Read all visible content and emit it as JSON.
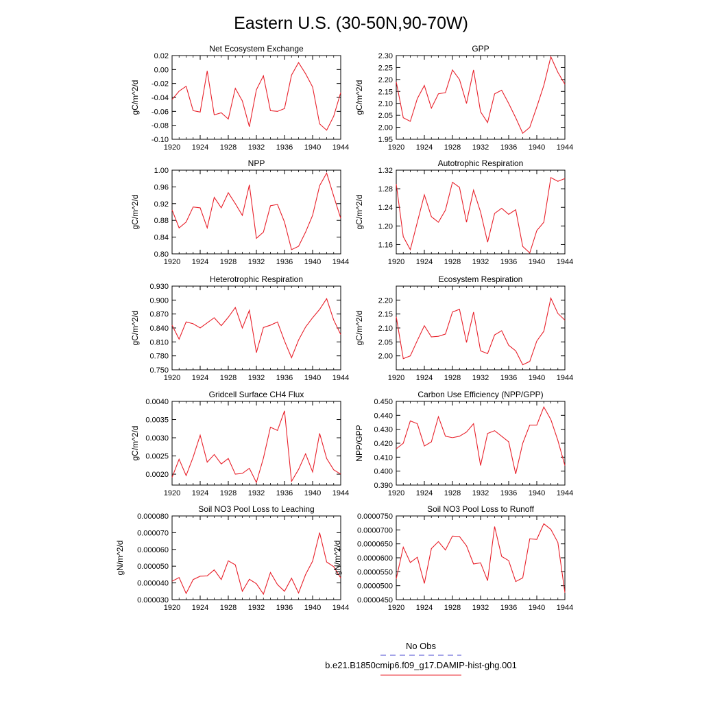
{
  "page": {
    "title": "Eastern U.S. (30-50N,90-70W)",
    "legend": {
      "obs_label": "No Obs",
      "obs_color": "#4a4ad0",
      "model_label": "b.e21.B1850cmip6.f09_g17.DAMIP-hist-ghg.001",
      "model_color": "#e8202a"
    }
  },
  "chart_data": [
    {
      "type": "line",
      "title": "Net Ecosystem Exchange",
      "ylabel": "gC/m^2/d",
      "xlim": [
        1920,
        1944
      ],
      "xticks": [
        "1920",
        "1924",
        "1928",
        "1932",
        "1936",
        "1940",
        "1944"
      ],
      "ylim": [
        -0.1,
        0.02
      ],
      "yticks": [
        "-0.10",
        "-0.08",
        "-0.06",
        "-0.04",
        "-0.02",
        "0.00",
        "0.02"
      ],
      "x": [
        1920,
        1921,
        1922,
        1923,
        1924,
        1925,
        1926,
        1927,
        1928,
        1929,
        1930,
        1931,
        1932,
        1933,
        1934,
        1935,
        1936,
        1937,
        1938,
        1939,
        1940,
        1941,
        1942,
        1943,
        1944
      ],
      "series": [
        {
          "color": "#e8202a",
          "values": [
            -0.043,
            -0.031,
            -0.024,
            -0.059,
            -0.061,
            -0.002,
            -0.065,
            -0.062,
            -0.071,
            -0.027,
            -0.045,
            -0.082,
            -0.029,
            -0.009,
            -0.059,
            -0.06,
            -0.056,
            -0.008,
            0.01,
            -0.006,
            -0.025,
            -0.078,
            -0.087,
            -0.067,
            -0.033
          ]
        }
      ]
    },
    {
      "type": "line",
      "title": "GPP",
      "ylabel": "gC/m^2/d",
      "xlim": [
        1920,
        1944
      ],
      "xticks": [
        "1920",
        "1924",
        "1928",
        "1932",
        "1936",
        "1940",
        "1944"
      ],
      "ylim": [
        1.95,
        2.3
      ],
      "yticks": [
        "1.95",
        "2.00",
        "2.05",
        "2.10",
        "2.15",
        "2.20",
        "2.25",
        "2.30"
      ],
      "x": [
        1920,
        1921,
        1922,
        1923,
        1924,
        1925,
        1926,
        1927,
        1928,
        1929,
        1930,
        1931,
        1932,
        1933,
        1934,
        1935,
        1936,
        1937,
        1938,
        1939,
        1940,
        1941,
        1942,
        1943,
        1944
      ],
      "series": [
        {
          "color": "#e8202a",
          "values": [
            2.19,
            2.04,
            2.025,
            2.12,
            2.175,
            2.08,
            2.14,
            2.145,
            2.24,
            2.2,
            2.1,
            2.24,
            2.065,
            2.02,
            2.14,
            2.155,
            2.1,
            2.04,
            1.975,
            2.0,
            2.085,
            2.175,
            2.295,
            2.23,
            2.18
          ]
        }
      ]
    },
    {
      "type": "line",
      "title": "NPP",
      "ylabel": "gC/m^2/d",
      "xlim": [
        1920,
        1944
      ],
      "xticks": [
        "1920",
        "1924",
        "1928",
        "1932",
        "1936",
        "1940",
        "1944"
      ],
      "ylim": [
        0.8,
        1.0
      ],
      "yticks": [
        "0.80",
        "0.84",
        "0.88",
        "0.92",
        "0.96",
        "1.00"
      ],
      "x": [
        1920,
        1921,
        1922,
        1923,
        1924,
        1925,
        1926,
        1927,
        1928,
        1929,
        1930,
        1931,
        1932,
        1933,
        1934,
        1935,
        1936,
        1937,
        1938,
        1939,
        1940,
        1941,
        1942,
        1943,
        1944
      ],
      "series": [
        {
          "color": "#e8202a",
          "values": [
            0.905,
            0.862,
            0.876,
            0.912,
            0.91,
            0.862,
            0.935,
            0.91,
            0.946,
            0.92,
            0.892,
            0.965,
            0.837,
            0.852,
            0.915,
            0.918,
            0.876,
            0.81,
            0.818,
            0.852,
            0.892,
            0.963,
            0.993,
            0.938,
            0.885
          ]
        }
      ]
    },
    {
      "type": "line",
      "title": "Autotrophic Respiration",
      "ylabel": "gC/m^2/d",
      "xlim": [
        1920,
        1944
      ],
      "xticks": [
        "1920",
        "1924",
        "1928",
        "1932",
        "1936",
        "1940",
        "1944"
      ],
      "ylim": [
        1.14,
        1.32
      ],
      "yticks": [
        "1.16",
        "1.20",
        "1.24",
        "1.28",
        "1.32"
      ],
      "x": [
        1920,
        1921,
        1922,
        1923,
        1924,
        1925,
        1926,
        1927,
        1928,
        1929,
        1930,
        1931,
        1932,
        1933,
        1934,
        1935,
        1936,
        1937,
        1938,
        1939,
        1940,
        1941,
        1942,
        1943,
        1944
      ],
      "series": [
        {
          "color": "#e8202a",
          "values": [
            1.29,
            1.177,
            1.149,
            1.208,
            1.267,
            1.22,
            1.208,
            1.234,
            1.294,
            1.283,
            1.208,
            1.277,
            1.23,
            1.165,
            1.227,
            1.238,
            1.225,
            1.235,
            1.156,
            1.142,
            1.19,
            1.208,
            1.304,
            1.296,
            1.302
          ]
        }
      ]
    },
    {
      "type": "line",
      "title": "Heterotrophic Respiration",
      "ylabel": "gC/m^2/d",
      "xlim": [
        1920,
        1944
      ],
      "xticks": [
        "1920",
        "1924",
        "1928",
        "1932",
        "1936",
        "1940",
        "1944"
      ],
      "ylim": [
        0.75,
        0.93
      ],
      "yticks": [
        "0.750",
        "0.780",
        "0.810",
        "0.840",
        "0.870",
        "0.900",
        "0.930"
      ],
      "x": [
        1920,
        1921,
        1922,
        1923,
        1924,
        1925,
        1926,
        1927,
        1928,
        1929,
        1930,
        1931,
        1932,
        1933,
        1934,
        1935,
        1936,
        1937,
        1938,
        1939,
        1940,
        1941,
        1942,
        1943,
        1944
      ],
      "series": [
        {
          "color": "#e8202a",
          "values": [
            0.846,
            0.816,
            0.853,
            0.849,
            0.84,
            0.851,
            0.862,
            0.845,
            0.863,
            0.884,
            0.84,
            0.878,
            0.787,
            0.841,
            0.846,
            0.853,
            0.812,
            0.776,
            0.814,
            0.842,
            0.862,
            0.88,
            0.903,
            0.857,
            0.826
          ]
        }
      ]
    },
    {
      "type": "line",
      "title": "Ecosystem Respiration",
      "ylabel": "gC/m^2/d",
      "xlim": [
        1920,
        1944
      ],
      "xticks": [
        "1920",
        "1924",
        "1928",
        "1932",
        "1936",
        "1940",
        "1944"
      ],
      "ylim": [
        1.95,
        2.25
      ],
      "yticks": [
        "2.00",
        "2.05",
        "2.10",
        "2.15",
        "2.20"
      ],
      "x": [
        1920,
        1921,
        1922,
        1923,
        1924,
        1925,
        1926,
        1927,
        1928,
        1929,
        1930,
        1931,
        1932,
        1933,
        1934,
        1935,
        1936,
        1937,
        1938,
        1939,
        1940,
        1941,
        1942,
        1943,
        1944
      ],
      "series": [
        {
          "color": "#e8202a",
          "values": [
            2.14,
            1.99,
            2.0,
            2.055,
            2.108,
            2.068,
            2.07,
            2.078,
            2.157,
            2.167,
            2.048,
            2.157,
            2.018,
            2.008,
            2.075,
            2.09,
            2.038,
            2.018,
            1.968,
            1.98,
            2.053,
            2.088,
            2.207,
            2.152,
            2.128
          ]
        }
      ]
    },
    {
      "type": "line",
      "title": "Gridcell Surface CH4 Flux",
      "ylabel": "gC/m^2/d",
      "xlim": [
        1920,
        1944
      ],
      "xticks": [
        "1920",
        "1924",
        "1928",
        "1932",
        "1936",
        "1940",
        "1944"
      ],
      "ylim": [
        0.0017,
        0.004
      ],
      "yticks": [
        "0.0020",
        "0.0025",
        "0.0030",
        "0.0035",
        "0.0040"
      ],
      "x": [
        1920,
        1921,
        1922,
        1923,
        1924,
        1925,
        1926,
        1927,
        1928,
        1929,
        1930,
        1931,
        1932,
        1933,
        1934,
        1935,
        1936,
        1937,
        1938,
        1939,
        1940,
        1941,
        1942,
        1943,
        1944
      ],
      "series": [
        {
          "color": "#e8202a",
          "values": [
            0.00191,
            0.00241,
            0.00196,
            0.00247,
            0.00307,
            0.00233,
            0.00254,
            0.00228,
            0.00243,
            0.002,
            0.00202,
            0.00216,
            0.00177,
            0.00244,
            0.00329,
            0.0032,
            0.00374,
            0.0018,
            0.00213,
            0.00256,
            0.00206,
            0.00312,
            0.00243,
            0.00212,
            0.002
          ]
        }
      ]
    },
    {
      "type": "line",
      "title": "Carbon Use Efficiency (NPP/GPP)",
      "ylabel": "NPP/GPP",
      "xlim": [
        1920,
        1944
      ],
      "xticks": [
        "1920",
        "1924",
        "1928",
        "1932",
        "1936",
        "1940",
        "1944"
      ],
      "ylim": [
        0.39,
        0.45
      ],
      "yticks": [
        "0.390",
        "0.400",
        "0.410",
        "0.420",
        "0.430",
        "0.440",
        "0.450"
      ],
      "x": [
        1920,
        1921,
        1922,
        1923,
        1924,
        1925,
        1926,
        1927,
        1928,
        1929,
        1930,
        1931,
        1932,
        1933,
        1934,
        1935,
        1936,
        1937,
        1938,
        1939,
        1940,
        1941,
        1942,
        1943,
        1944
      ],
      "series": [
        {
          "color": "#e8202a",
          "values": [
            0.416,
            0.42,
            0.436,
            0.434,
            0.418,
            0.421,
            0.439,
            0.425,
            0.424,
            0.425,
            0.428,
            0.434,
            0.404,
            0.427,
            0.429,
            0.425,
            0.421,
            0.398,
            0.42,
            0.433,
            0.433,
            0.446,
            0.437,
            0.422,
            0.404
          ]
        }
      ]
    },
    {
      "type": "line",
      "title": "Soil NO3 Pool Loss to Leaching",
      "ylabel": "gN/m^2/d",
      "xlim": [
        1920,
        1944
      ],
      "xticks": [
        "1920",
        "1924",
        "1928",
        "1932",
        "1936",
        "1940",
        "1944"
      ],
      "ylim": [
        3e-05,
        8e-05
      ],
      "yticks": [
        "0.000030",
        "0.000040",
        "0.000050",
        "0.000060",
        "0.000070",
        "0.000080"
      ],
      "x": [
        1920,
        1921,
        1922,
        1923,
        1924,
        1925,
        1926,
        1927,
        1928,
        1929,
        1930,
        1931,
        1932,
        1933,
        1934,
        1935,
        1936,
        1937,
        1938,
        1939,
        1940,
        1941,
        1942,
        1943,
        1944
      ],
      "series": [
        {
          "color": "#e8202a",
          "values": [
            4.1e-05,
            4.32e-05,
            3.37e-05,
            4.2e-05,
            4.4e-05,
            4.42e-05,
            4.78e-05,
            4.2e-05,
            5.32e-05,
            5.08e-05,
            3.5e-05,
            4.22e-05,
            3.95e-05,
            3.33e-05,
            4.62e-05,
            3.9e-05,
            3.5e-05,
            4.28e-05,
            3.4e-05,
            4.5e-05,
            5.3e-05,
            7e-05,
            5.25e-05,
            4.97e-05,
            4.3e-05
          ]
        }
      ]
    },
    {
      "type": "line",
      "title": "Soil NO3 Pool Loss to Runoff",
      "ylabel": "gN/m^2/d",
      "xlim": [
        1920,
        1944
      ],
      "xticks": [
        "1920",
        "1924",
        "1928",
        "1932",
        "1936",
        "1940",
        "1944"
      ],
      "ylim": [
        4.5e-05,
        7.5e-05
      ],
      "yticks": [
        "0.0000450",
        "0.0000500",
        "0.0000550",
        "0.0000600",
        "0.0000650",
        "0.0000700",
        "0.0000750"
      ],
      "x": [
        1920,
        1921,
        1922,
        1923,
        1924,
        1925,
        1926,
        1927,
        1928,
        1929,
        1930,
        1931,
        1932,
        1933,
        1934,
        1935,
        1936,
        1937,
        1938,
        1939,
        1940,
        1941,
        1942,
        1943,
        1944
      ],
      "series": [
        {
          "color": "#e8202a",
          "values": [
            5.25e-05,
            6.38e-05,
            5.83e-05,
            6.02e-05,
            5.08e-05,
            6.33e-05,
            6.58e-05,
            6.28e-05,
            6.78e-05,
            6.76e-05,
            6.43e-05,
            5.78e-05,
            5.82e-05,
            5.18e-05,
            7.12e-05,
            6.05e-05,
            5.9e-05,
            5.15e-05,
            5.28e-05,
            6.68e-05,
            6.66e-05,
            7.22e-05,
            7.02e-05,
            6.55e-05,
            4.75e-05
          ]
        }
      ]
    }
  ]
}
